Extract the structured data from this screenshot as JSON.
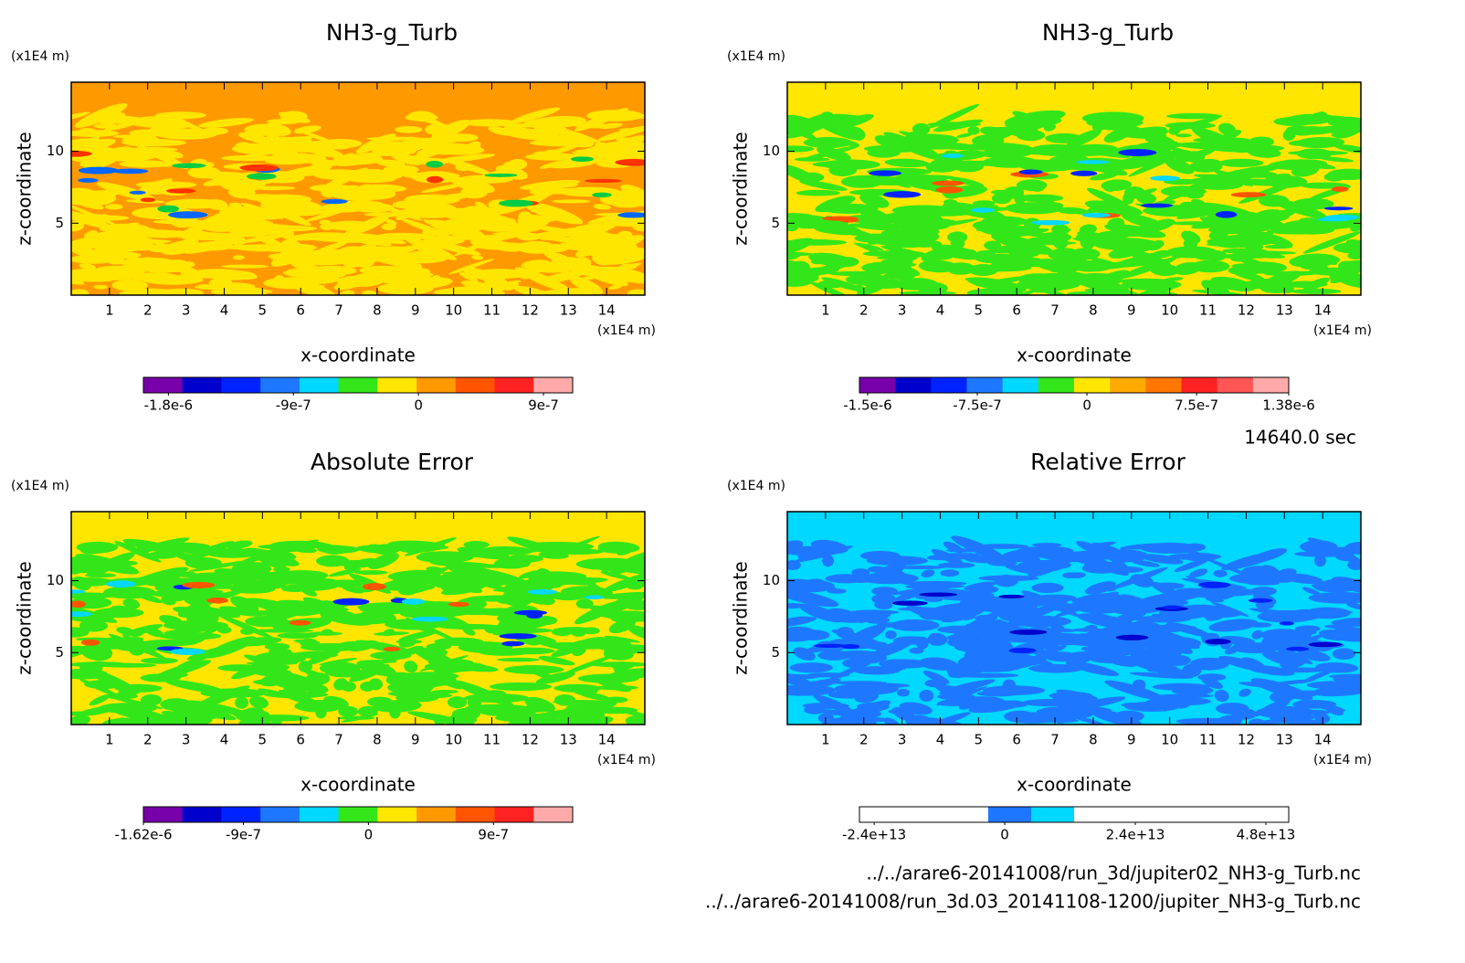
{
  "chart_data": [
    {
      "type": "contour",
      "title": "NH3-g_Turb",
      "xlabel": "x-coordinate",
      "ylabel": "z-coordinate",
      "x_unit": "(x1E4 m)",
      "y_unit": "(x1E4 m)",
      "xlim": [
        0,
        15
      ],
      "ylim": [
        0,
        14.8
      ],
      "xticks": [
        1,
        2,
        3,
        4,
        5,
        6,
        7,
        8,
        9,
        10,
        11,
        12,
        13,
        14
      ],
      "yticks": [
        5,
        10
      ],
      "field_colors": [
        "#ff9900",
        "#ffe600",
        "#ff3300",
        "#00cc44",
        "#0066ff"
      ],
      "colorbar": {
        "clim": [
          -1.98e-06,
          1.11e-06
        ],
        "colors": [
          "#7700aa",
          "#0000cc",
          "#0022ff",
          "#1e78ff",
          "#00d8ff",
          "#33e61a",
          "#ffe600",
          "#ff9900",
          "#ff5500",
          "#ff2222",
          "#ffaaaa"
        ],
        "ticks": [
          {
            "value": -1.8e-06,
            "label": "-1.8e-6"
          },
          {
            "value": -9e-07,
            "label": "-9e-7"
          },
          0,
          {
            "value": 9e-07,
            "label": "9e-7"
          }
        ]
      }
    },
    {
      "type": "contour",
      "title": "NH3-g_Turb",
      "xlabel": "x-coordinate",
      "ylabel": "z-coordinate",
      "x_unit": "(x1E4 m)",
      "y_unit": "(x1E4 m)",
      "xlim": [
        0,
        15
      ],
      "ylim": [
        0,
        14.8
      ],
      "xticks": [
        1,
        2,
        3,
        4,
        5,
        6,
        7,
        8,
        9,
        10,
        11,
        12,
        13,
        14
      ],
      "yticks": [
        5,
        10
      ],
      "field_colors": [
        "#ffe600",
        "#33e61a",
        "#00d8ff",
        "#ff5500",
        "#0022ff"
      ],
      "colorbar": {
        "clim": [
          -1.556e-06,
          1.38e-06
        ],
        "colors": [
          "#7700aa",
          "#0000cc",
          "#0022ff",
          "#1e78ff",
          "#00d8ff",
          "#33e61a",
          "#ffe600",
          "#ffaa00",
          "#ff7700",
          "#ff2222",
          "#ff5555",
          "#ffaaaa"
        ],
        "ticks": [
          {
            "value": -1.5e-06,
            "label": "-1.5e-6"
          },
          {
            "value": -7.5e-07,
            "label": "-7.5e-7"
          },
          0,
          {
            "value": 7.5e-07,
            "label": "7.5e-7"
          },
          {
            "value": 1.38e-06,
            "label": "1.38e-6"
          }
        ]
      }
    },
    {
      "type": "contour",
      "title": "Absolute Error",
      "xlabel": "x-coordinate",
      "ylabel": "z-coordinate",
      "x_unit": "(x1E4 m)",
      "y_unit": "(x1E4 m)",
      "xlim": [
        0,
        15
      ],
      "ylim": [
        0,
        14.8
      ],
      "xticks": [
        1,
        2,
        3,
        4,
        5,
        6,
        7,
        8,
        9,
        10,
        11,
        12,
        13,
        14
      ],
      "yticks": [
        5,
        10
      ],
      "field_colors": [
        "#ffe600",
        "#33e61a",
        "#00d8ff",
        "#ff5500",
        "#0022ff"
      ],
      "colorbar": {
        "clim": [
          -1.62e-06,
          1.47e-06
        ],
        "colors": [
          "#7700aa",
          "#0000cc",
          "#0022ff",
          "#1e78ff",
          "#00d8ff",
          "#33e61a",
          "#ffe600",
          "#ff9900",
          "#ff5500",
          "#ff2222",
          "#ffaaaa"
        ],
        "ticks": [
          {
            "value": -1.62e-06,
            "label": "-1.62e-6"
          },
          {
            "value": -9e-07,
            "label": "-9e-7"
          },
          0,
          {
            "value": 9e-07,
            "label": "9e-7"
          }
        ]
      }
    },
    {
      "type": "contour",
      "title": "Relative Error",
      "xlabel": "x-coordinate",
      "ylabel": "z-coordinate",
      "x_unit": "(x1E4 m)",
      "y_unit": "(x1E4 m)",
      "xlim": [
        0,
        15
      ],
      "ylim": [
        0,
        14.8
      ],
      "xticks": [
        1,
        2,
        3,
        4,
        5,
        6,
        7,
        8,
        9,
        10,
        11,
        12,
        13,
        14
      ],
      "yticks": [
        5,
        10
      ],
      "field_colors": [
        "#00d8ff",
        "#1e78ff",
        "#1e78ff",
        "#0022ff",
        "#0000cc"
      ],
      "colorbar": {
        "clim": [
          -26700000000000.0,
          52200000000000.0
        ],
        "colors": [
          "#ffffff",
          "#ffffff",
          "#ffffff",
          "#1e78ff",
          "#00d8ff",
          "#ffffff",
          "#ffffff",
          "#ffffff",
          "#ffffff",
          "#ffffff"
        ],
        "ticks": [
          {
            "value": -24000000000000.0,
            "label": "-2.4e+13"
          },
          0,
          {
            "value": 24000000000000.0,
            "label": "2.4e+13"
          },
          {
            "value": 48000000000000.0,
            "label": "4.8e+13"
          }
        ]
      }
    }
  ],
  "time": "14640.0 sec",
  "files": [
    "../../arare6-20141008/run_3d/jupiter02_NH3-g_Turb.nc",
    "../../arare6-20141008/run_3d.03_20141108-1200/jupiter_NH3-g_Turb.nc"
  ]
}
